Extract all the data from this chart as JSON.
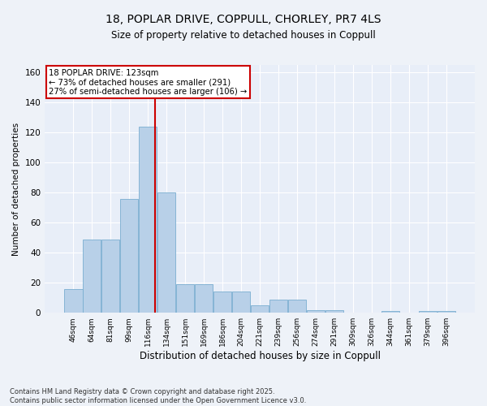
{
  "title_line1": "18, POPLAR DRIVE, COPPULL, CHORLEY, PR7 4LS",
  "title_line2": "Size of property relative to detached houses in Coppull",
  "xlabel": "Distribution of detached houses by size in Coppull",
  "ylabel": "Number of detached properties",
  "categories": [
    "46sqm",
    "64sqm",
    "81sqm",
    "99sqm",
    "116sqm",
    "134sqm",
    "151sqm",
    "169sqm",
    "186sqm",
    "204sqm",
    "221sqm",
    "239sqm",
    "256sqm",
    "274sqm",
    "291sqm",
    "309sqm",
    "326sqm",
    "344sqm",
    "361sqm",
    "379sqm",
    "396sqm"
  ],
  "values": [
    16,
    49,
    49,
    76,
    124,
    80,
    19,
    19,
    14,
    14,
    5,
    9,
    9,
    2,
    2,
    0,
    0,
    1,
    0,
    1,
    1
  ],
  "bar_color": "#b8d0e8",
  "bar_edge_color": "#7aaed0",
  "vline_color": "#cc0000",
  "annotation_text": "18 POPLAR DRIVE: 123sqm\n← 73% of detached houses are smaller (291)\n27% of semi-detached houses are larger (106) →",
  "annotation_box_color": "#cc0000",
  "ylim": [
    0,
    165
  ],
  "yticks": [
    0,
    20,
    40,
    60,
    80,
    100,
    120,
    140,
    160
  ],
  "background_color": "#eef2f8",
  "plot_bg_color": "#e8eef8",
  "grid_color": "#ffffff",
  "footer_line1": "Contains HM Land Registry data © Crown copyright and database right 2025.",
  "footer_line2": "Contains public sector information licensed under the Open Government Licence v3.0."
}
